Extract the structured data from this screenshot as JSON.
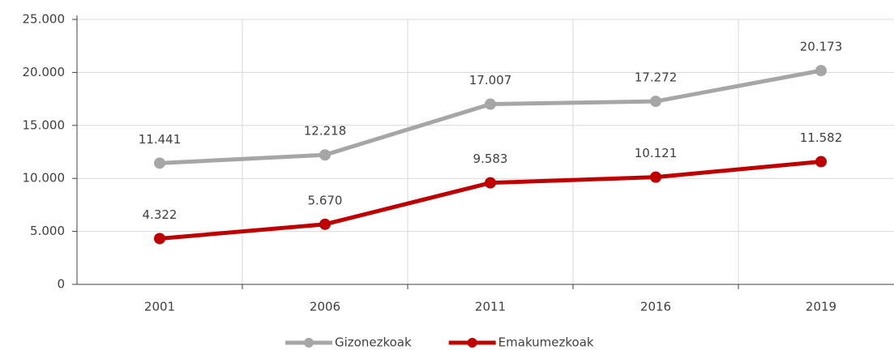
{
  "chart_data": {
    "type": "line",
    "categories": [
      "2001",
      "2006",
      "2011",
      "2016",
      "2019"
    ],
    "series": [
      {
        "name": "Gizonezkoak",
        "color": "#a6a6a6",
        "values": [
          11441,
          12218,
          17007,
          17272,
          20173
        ],
        "value_labels": [
          "11.441",
          "12.218",
          "17.007",
          "17.272",
          "20.173"
        ]
      },
      {
        "name": "Emakumezkoak",
        "color": "#c00000",
        "values": [
          4322,
          5670,
          9583,
          10121,
          11582
        ],
        "value_labels": [
          "4.322",
          "5.670",
          "9.583",
          "10.121",
          "11.582"
        ]
      }
    ],
    "ylim": [
      0,
      25000
    ],
    "yticks": [
      0,
      {
        "value": 5000,
        "label": "5.000"
      },
      {
        "value": 10000,
        "label": "10.000"
      },
      {
        "value": 15000,
        "label": "15.000"
      },
      {
        "value": 20000,
        "label": "20.000"
      },
      {
        "value": 25000,
        "label": "25.000"
      }
    ],
    "grid": true,
    "legend": "bottom"
  }
}
